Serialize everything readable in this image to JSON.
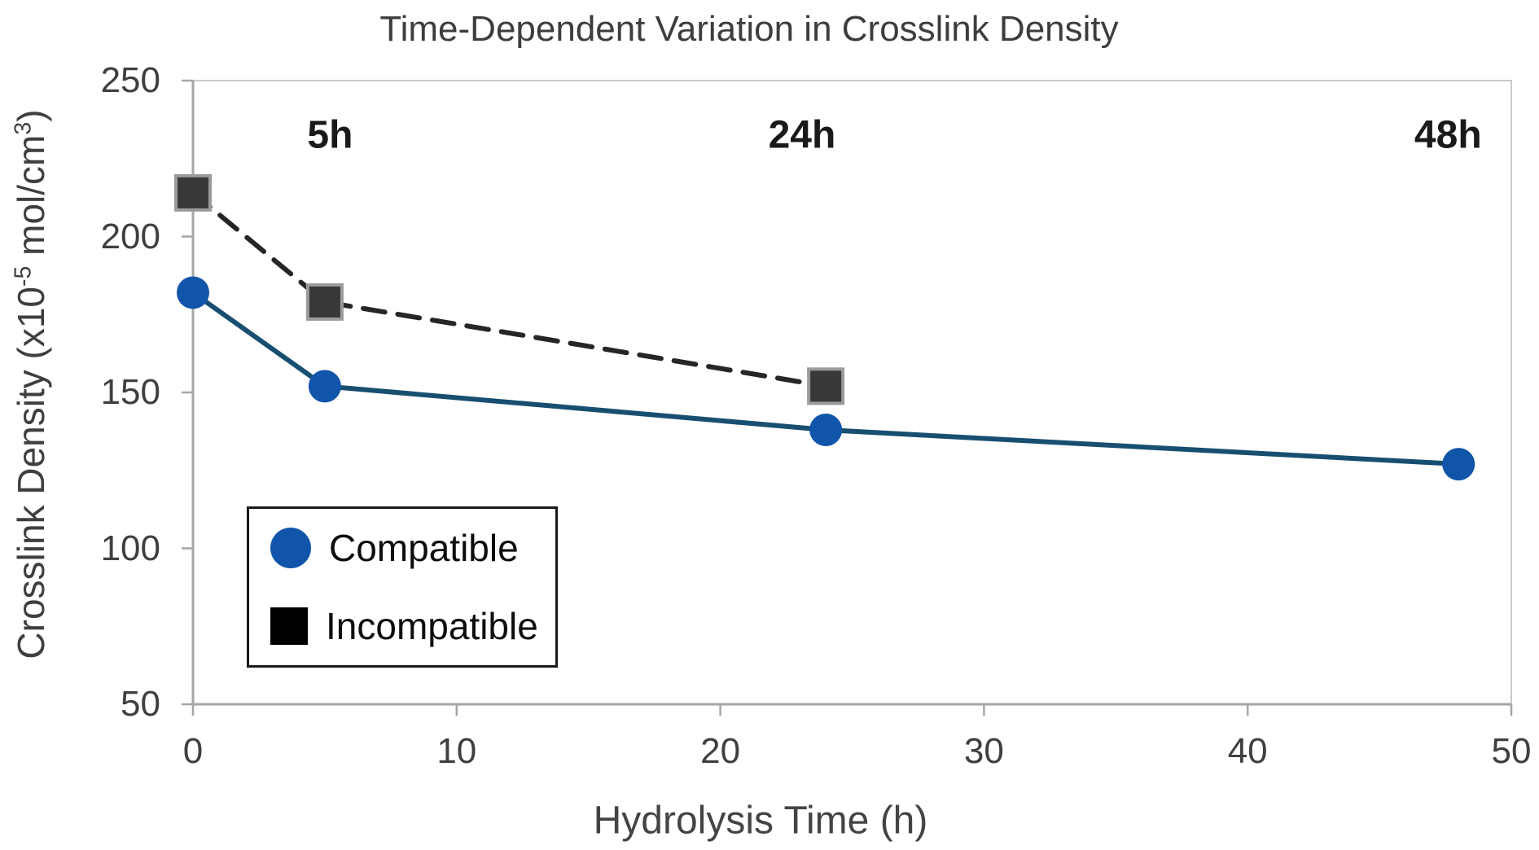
{
  "chart_data": {
    "type": "line",
    "title": "Time-Dependent Variation in Crosslink Density",
    "xlabel": "Hydrolysis Time (h)",
    "ylabel": "Crosslink Density (x10-5 mol/cm3)",
    "ylabel_parts": {
      "pre": "Crosslink Density (x10",
      "sup1": "-5",
      "mid": " mol/cm",
      "sup2": "3",
      "post": ")"
    },
    "xlim": [
      0,
      50
    ],
    "ylim": [
      50,
      250
    ],
    "x_ticks": [
      0,
      10,
      20,
      30,
      40,
      50
    ],
    "y_ticks": [
      250,
      200,
      150,
      100,
      50
    ],
    "grid": false,
    "legend_position": "bottom-left",
    "series": [
      {
        "name": "Compatible",
        "marker": "circle",
        "line_style": "solid",
        "line_color": "#184F70",
        "marker_color": "#1155AB",
        "x": [
          0,
          5,
          24,
          48
        ],
        "values": [
          182,
          152,
          138,
          127
        ]
      },
      {
        "name": "Incompatible",
        "marker": "square",
        "line_style": "dashed",
        "line_color": "#262626",
        "marker_color": "#383838",
        "marker_border": "#9B9B9B",
        "x": [
          0,
          5,
          24
        ],
        "values": [
          214,
          179,
          152
        ]
      }
    ],
    "annotations": [
      {
        "text": "5h",
        "t": 5.2,
        "v": 232.5
      },
      {
        "text": "24h",
        "t": 23.1,
        "v": 232.5
      },
      {
        "text": "48h",
        "t": 47.6,
        "v": 232.5
      }
    ],
    "colors": {
      "plot_border": "#C9C9C9",
      "axis_line": "#A6A6A6",
      "title_text": "#3d3d3d",
      "tick_text": "#3f3f3f",
      "axis_title_text": "#444444",
      "annotation_text": "#1a1a1a",
      "legend_square": "#000000",
      "legend_border": "#1a1a1a"
    }
  }
}
